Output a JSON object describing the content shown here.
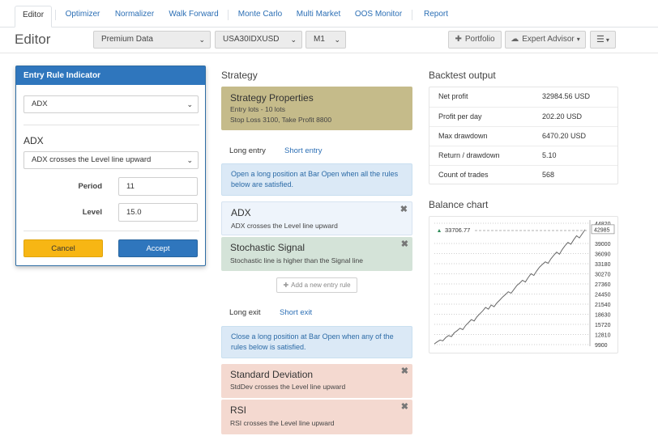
{
  "tabs": [
    {
      "label": "Editor",
      "active": true
    },
    {
      "label": "Optimizer"
    },
    {
      "label": "Normalizer"
    },
    {
      "label": "Walk Forward"
    },
    {
      "label": "Monte Carlo"
    },
    {
      "label": "Multi Market"
    },
    {
      "label": "OOS Monitor"
    },
    {
      "label": "Report"
    }
  ],
  "toolbar": {
    "title": "Editor",
    "data_source": "Premium Data",
    "symbol": "USA30IDXUSD",
    "period": "M1",
    "portfolio_label": "Portfolio",
    "expert_advisor_label": "Expert Advisor"
  },
  "modal": {
    "header": "Entry Rule Indicator",
    "indicator": "ADX",
    "indicator_title": "ADX",
    "rule": "ADX crosses the Level line upward",
    "params": [
      {
        "label": "Period",
        "value": "11"
      },
      {
        "label": "Level",
        "value": "15.0"
      }
    ],
    "cancel_label": "Cancel",
    "accept_label": "Accept"
  },
  "strategy": {
    "heading": "Strategy",
    "properties": {
      "title": "Strategy Properties",
      "line1": "Entry lots - 10 lots",
      "line2": "Stop Loss 3100, Take Profit 8800"
    },
    "entry_tabs": {
      "long": "Long entry",
      "short": "Short entry"
    },
    "entry_info": "Open a long position at Bar Open when all the rules below are satisfied.",
    "entry_rules": [
      {
        "title": "ADX",
        "desc": "ADX crosses the Level line upward"
      },
      {
        "title": "Stochastic Signal",
        "desc": "Stochastic line is higher than the Signal line"
      }
    ],
    "add_rule_label": "Add a new entry rule",
    "exit_tabs": {
      "long": "Long exit",
      "short": "Short exit"
    },
    "exit_info": "Close a long position at Bar Open when any of the rules below is satisfied.",
    "exit_rules": [
      {
        "title": "Standard Deviation",
        "desc": "StdDev crosses the Level line upward"
      },
      {
        "title": "RSI",
        "desc": "RSI crosses the Level line upward"
      }
    ]
  },
  "backtest": {
    "heading": "Backtest output",
    "rows": [
      {
        "label": "Net profit",
        "value": "32984.56 USD"
      },
      {
        "label": "Profit per day",
        "value": "202.20 USD"
      },
      {
        "label": "Max drawdown",
        "value": "6470.20 USD"
      },
      {
        "label": "Return / drawdown",
        "value": "5.10"
      },
      {
        "label": "Count of trades",
        "value": "568"
      }
    ]
  },
  "balance_chart": {
    "heading": "Balance chart",
    "marker_label": "33706.77",
    "last_value_label": "42985",
    "y_ticks": [
      "44820",
      "39000",
      "36090",
      "33180",
      "30270",
      "27360",
      "24450",
      "21540",
      "18630",
      "15720",
      "12810",
      "9900"
    ]
  },
  "colors": {
    "tab_link": "#2c6fb5",
    "modal_header": "#2f76bd",
    "cancel": "#f7b614",
    "accept": "#2f76bd",
    "properties_card": "#c5bb8a",
    "entry_rule_1": "#eef4fb",
    "entry_rule_2": "#d4e3d8",
    "exit_rule": "#f4d9d0",
    "info_box": "#dbe9f6",
    "chart_line": "#666666"
  },
  "chart_data": {
    "type": "line",
    "title": "",
    "ylim": [
      9900,
      44820
    ],
    "y_ticks": [
      44820,
      42985,
      39000,
      36090,
      33180,
      30270,
      27360,
      24450,
      21540,
      18630,
      15720,
      12810,
      9900
    ],
    "series": [
      {
        "values": [
          10100,
          10700,
          11200,
          11000,
          11900,
          12500,
          12200,
          13300,
          13900,
          14600,
          14200,
          15400,
          16200,
          17100,
          16700,
          17900,
          18800,
          19600,
          20600,
          20100,
          21300,
          20800,
          21900,
          22700,
          23600,
          24300,
          25100,
          24700,
          25800,
          26900,
          27600,
          28400,
          27900,
          29200,
          30300,
          29800,
          31100,
          32200,
          33000,
          33706,
          33300,
          34600,
          35600,
          36500,
          35900,
          37300,
          38400,
          39300,
          38800,
          40100,
          41200,
          40600,
          41800,
          42985
        ]
      }
    ]
  }
}
